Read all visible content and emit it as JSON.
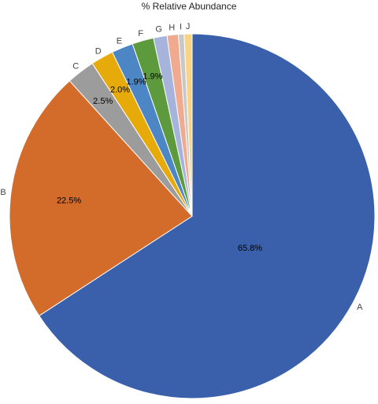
{
  "chart_data": {
    "type": "pie",
    "title": "% Relative Abundance",
    "categories": [
      "A",
      "B",
      "C",
      "D",
      "E",
      "F",
      "G",
      "H",
      "I",
      "J"
    ],
    "values": [
      65.8,
      22.5,
      2.5,
      2.0,
      1.9,
      1.9,
      1.2,
      1.0,
      0.5,
      0.7
    ],
    "value_labels": [
      "65.8%",
      "22.5%",
      "2.5%",
      "2.0%",
      "1.9%",
      "1.9%",
      "",
      "",
      "",
      ""
    ],
    "colors": [
      "#3a60ac",
      "#d36c2b",
      "#9c9c9c",
      "#e7aa0b",
      "#4d86c4",
      "#5c9a3d",
      "#a6b4dc",
      "#f0aa90",
      "#c8c8c8",
      "#f8d486"
    ],
    "start_angle": "12 o'clock",
    "direction": "clockwise"
  }
}
